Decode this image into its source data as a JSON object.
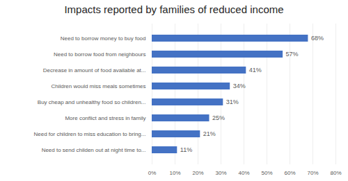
{
  "chart_data": {
    "type": "bar",
    "orientation": "horizontal",
    "title": "Impacts reported by families of reduced income",
    "categories": [
      "Need to send childen out at night time to...",
      "Need for children to miss education to bring...",
      "More conflict and stress in family",
      "Buy cheap and unhealthy food so children...",
      "Children would miss meals sometimes",
      "Decrease in amount of food available at...",
      "Need to borrow food from neighbours",
      "Need to borrow money to buy food"
    ],
    "values": [
      11,
      21,
      25,
      31,
      34,
      41,
      57,
      68
    ],
    "value_labels": [
      "11%",
      "21%",
      "25%",
      "31%",
      "34%",
      "41%",
      "57%",
      "68%"
    ],
    "color": "#4472C4",
    "xlim": [
      0,
      80
    ],
    "xticks": [
      {
        "value": 0,
        "label": "0%"
      },
      {
        "value": 10,
        "label": "10%"
      },
      {
        "value": 20,
        "label": "20%"
      },
      {
        "value": 30,
        "label": "30%"
      },
      {
        "value": 40,
        "label": "40%"
      },
      {
        "value": 50,
        "label": "50%"
      },
      {
        "value": 60,
        "label": "60%"
      },
      {
        "value": 70,
        "label": "70%"
      },
      {
        "value": 80,
        "label": "80%"
      }
    ],
    "grid": true,
    "data_labels": true
  }
}
